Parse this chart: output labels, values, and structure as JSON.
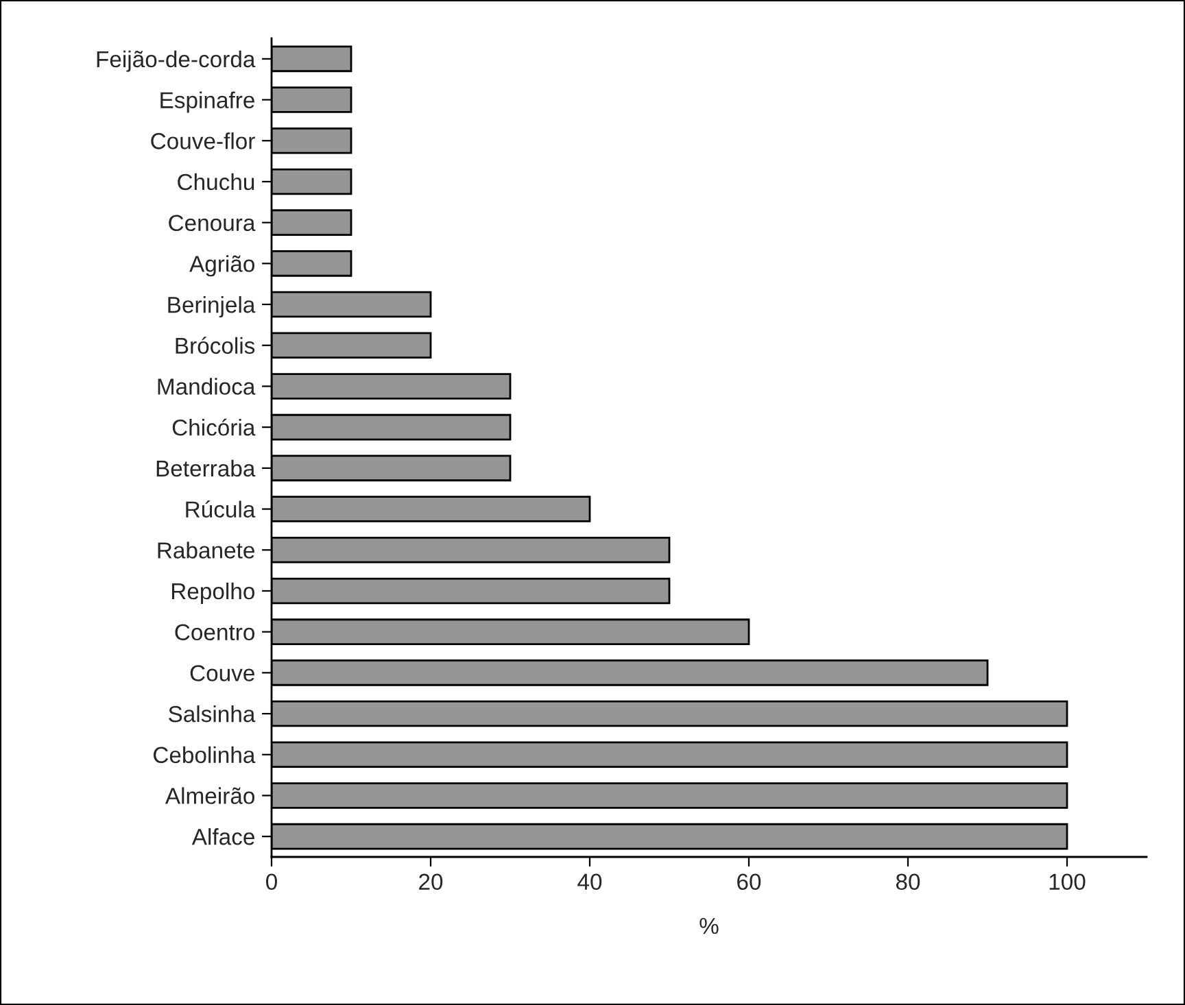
{
  "chart_data": {
    "type": "bar",
    "orientation": "horizontal",
    "xlabel": "%",
    "categories": [
      "Feijão-de-corda",
      "Espinafre",
      "Couve-flor",
      "Chuchu",
      "Cenoura",
      "Agrião",
      "Berinjela",
      "Brócolis",
      "Mandioca",
      "Chicória",
      "Beterraba",
      "Rúcula",
      "Rabanete",
      "Repolho",
      "Coentro",
      "Couve",
      "Salsinha",
      "Cebolinha",
      "Almeirão",
      "Alface"
    ],
    "values": [
      10,
      10,
      10,
      10,
      10,
      10,
      20,
      20,
      30,
      30,
      30,
      40,
      50,
      50,
      60,
      90,
      100,
      100,
      100,
      100
    ],
    "color": "#969696",
    "xlim": [
      0,
      110
    ],
    "xticks": [
      0,
      20,
      40,
      60,
      80,
      100
    ],
    "grid": false
  }
}
